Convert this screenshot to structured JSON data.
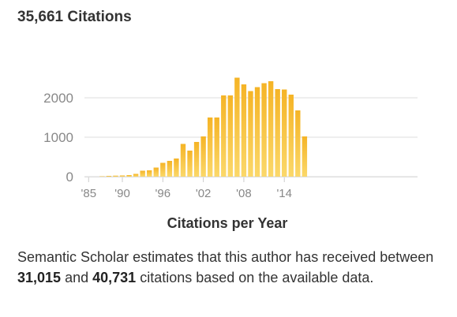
{
  "header": {
    "total_citations": "35,661 Citations"
  },
  "summary": {
    "prefix": "Semantic Scholar estimates that this author has received between",
    "low": "31,015",
    "middle": "and",
    "high": "40,731",
    "suffix": "citations based on the available data."
  },
  "colors": {
    "bar_top": "#f5b426",
    "bar_bottom": "#fbd86a",
    "grid": "#dddddd",
    "axis_text": "#888888",
    "xlabel": "#333333"
  },
  "chart_data": {
    "type": "bar",
    "title": "",
    "xlabel": "Citations per Year",
    "ylabel": "",
    "x_ticks": [
      "'85",
      "'90",
      "'96",
      "'02",
      "'08",
      "'14"
    ],
    "y_ticks": [
      0,
      1000,
      2000
    ],
    "ylim": [
      0,
      2600
    ],
    "grid": true,
    "categories": [
      1985,
      1986,
      1987,
      1988,
      1989,
      1990,
      1991,
      1992,
      1993,
      1994,
      1995,
      1996,
      1997,
      1998,
      1999,
      2000,
      2001,
      2002,
      2003,
      2004,
      2005,
      2006,
      2007,
      2008,
      2009,
      2010,
      2011,
      2012,
      2013,
      2014,
      2015,
      2016,
      2017
    ],
    "values": [
      0,
      0,
      10,
      20,
      25,
      30,
      40,
      70,
      150,
      160,
      230,
      350,
      400,
      460,
      830,
      660,
      880,
      1020,
      1500,
      1500,
      2060,
      2060,
      2510,
      2340,
      2170,
      2270,
      2370,
      2420,
      2220,
      2210,
      2080,
      1680,
      1020
    ]
  }
}
